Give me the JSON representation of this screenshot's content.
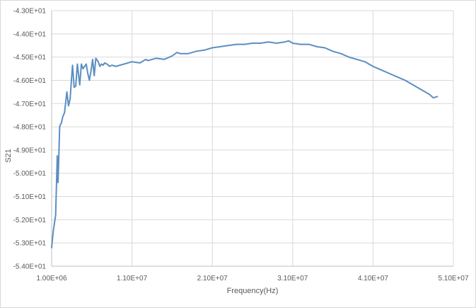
{
  "chart_data": {
    "type": "line",
    "title": "",
    "xlabel": "Frequency(Hz)",
    "ylabel": "S21",
    "xlim": [
      1000000,
      51000000
    ],
    "ylim": [
      -54,
      -43
    ],
    "grid": true,
    "legend": "none",
    "x_ticks": [
      1000000,
      11000000,
      21000000,
      31000000,
      41000000,
      51000000
    ],
    "x_tick_labels": [
      "1.00E+06",
      "1.10E+07",
      "2.10E+07",
      "3.10E+07",
      "4.10E+07",
      "5.10E+07"
    ],
    "y_ticks": [
      -43,
      -44,
      -45,
      -46,
      -47,
      -48,
      -49,
      -50,
      -51,
      -52,
      -53,
      -54
    ],
    "y_tick_labels": [
      "-4.30E+01",
      "-4.40E+01",
      "-4.50E+01",
      "-4.60E+01",
      "-4.70E+01",
      "-4.80E+01",
      "-4.90E+01",
      "-5.00E+01",
      "-5.10E+01",
      "-5.20E+01",
      "-5.30E+01",
      "-5.40E+01"
    ],
    "colors": {
      "series": "#5b8fc2",
      "grid": "#d9d9d9",
      "axis": "#bfbfbf"
    },
    "series": [
      {
        "x": [
          1000000,
          1200000,
          1500000,
          1700000,
          1800000,
          2000000,
          2100000,
          2200000,
          2400000,
          2600000,
          2900000,
          3100000,
          3300000,
          3400000,
          3600000,
          3800000,
          4000000,
          4200000,
          4500000,
          4700000,
          4900000,
          5100000,
          5300000,
          5500000,
          5700000,
          5900000,
          6100000,
          6300000,
          6500000,
          6800000,
          7000000,
          7200000,
          7400000,
          7600000,
          7900000,
          8200000,
          8500000,
          9000000,
          9500000,
          10000000,
          11000000,
          12000000,
          12700000,
          13000000,
          14000000,
          15000000,
          16000000,
          16600000,
          17000000,
          18000000,
          19000000,
          20000000,
          21000000,
          22000000,
          23000000,
          24000000,
          25000000,
          26000000,
          27000000,
          28000000,
          29000000,
          30000000,
          30500000,
          31000000,
          32000000,
          33000000,
          34000000,
          35000000,
          36000000,
          37000000,
          38000000,
          39000000,
          40000000,
          41000000,
          42000000,
          43000000,
          44000000,
          45000000,
          46000000,
          47000000,
          48000000,
          48500000,
          49000000
        ],
        "y": [
          -53.2,
          -52.5,
          -51.8,
          -49.25,
          -50.4,
          -48.0,
          -47.9,
          -47.85,
          -47.55,
          -47.4,
          -46.5,
          -47.1,
          -46.8,
          -46.3,
          -45.35,
          -46.3,
          -46.25,
          -45.3,
          -46.2,
          -45.3,
          -45.5,
          -45.4,
          -45.3,
          -45.7,
          -46.0,
          -45.6,
          -45.1,
          -45.8,
          -45.05,
          -45.2,
          -45.4,
          -45.3,
          -45.35,
          -45.25,
          -45.3,
          -45.4,
          -45.35,
          -45.4,
          -45.35,
          -45.3,
          -45.2,
          -45.25,
          -45.1,
          -45.15,
          -45.05,
          -45.1,
          -44.95,
          -44.8,
          -44.85,
          -44.85,
          -44.75,
          -44.7,
          -44.6,
          -44.55,
          -44.5,
          -44.45,
          -44.45,
          -44.4,
          -44.4,
          -44.35,
          -44.4,
          -44.35,
          -44.3,
          -44.4,
          -44.45,
          -44.45,
          -44.55,
          -44.6,
          -44.75,
          -44.85,
          -45.0,
          -45.1,
          -45.2,
          -45.4,
          -45.55,
          -45.7,
          -45.85,
          -46.0,
          -46.2,
          -46.4,
          -46.6,
          -46.75,
          -46.7
        ]
      }
    ]
  }
}
